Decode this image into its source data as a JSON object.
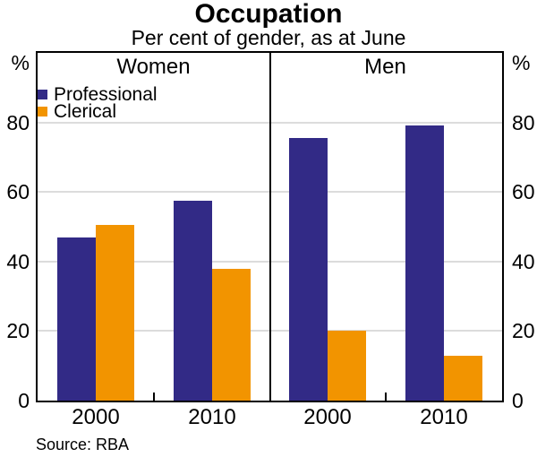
{
  "chart_data": {
    "type": "bar",
    "title": "Occupation",
    "subtitle": "Per cent of gender, as at June",
    "unit": "%",
    "source": "Source: RBA",
    "ylim": [
      0,
      100
    ],
    "yticks": [
      0,
      20,
      40,
      60,
      80
    ],
    "grid": true,
    "legend_position": "top-left-of-first-panel",
    "panels": [
      {
        "label": "Women",
        "categories": [
          "2000",
          "2010"
        ],
        "series": [
          {
            "name": "Professional",
            "color": "#322A86",
            "values": [
              47,
              57.5
            ]
          },
          {
            "name": "Clerical",
            "color": "#F29400",
            "values": [
              50.5,
              38
            ]
          }
        ]
      },
      {
        "label": "Men",
        "categories": [
          "2000",
          "2010"
        ],
        "series": [
          {
            "name": "Professional",
            "color": "#322A86",
            "values": [
              75.5,
              79
            ]
          },
          {
            "name": "Clerical",
            "color": "#F29400",
            "values": [
              20,
              13
            ]
          }
        ]
      }
    ],
    "colors": {
      "professional": "#322A86",
      "clerical": "#F29400",
      "gridline": "#DCDCDC",
      "axis": "#000000",
      "text": "#000000",
      "background": "#FFFFFF"
    }
  }
}
